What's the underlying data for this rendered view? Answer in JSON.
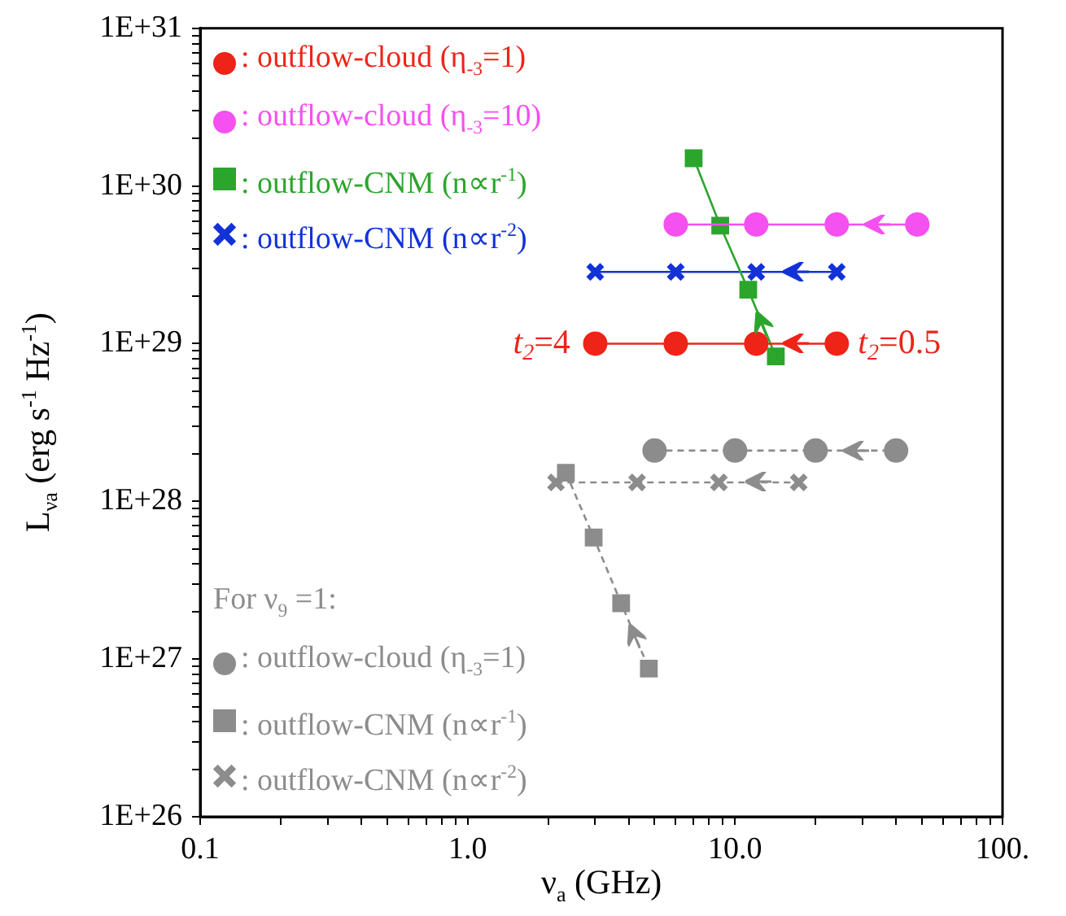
{
  "chart_data": {
    "type": "line",
    "xlabel": "ν$_{a}$ (GHz)",
    "ylabel": "L$_{νa}$ (erg s$^{-1}$ Hz$^{-1}$)",
    "log": "xy",
    "grid": false,
    "legend": "top left",
    "legend_title": "For ν$_{9}$ =1:",
    "xlim": [
      0.1,
      100
    ],
    "ylim": [
      1e+26,
      1e+31
    ],
    "xticks": [
      {
        "value": 0.1,
        "label": "0.1"
      },
      {
        "value": 0.2,
        "label": null
      },
      {
        "value": 0.3,
        "label": null
      },
      {
        "value": 0.4,
        "label": null
      },
      {
        "value": 0.5,
        "label": null
      },
      {
        "value": 0.6,
        "label": null
      },
      {
        "value": 0.7,
        "label": null
      },
      {
        "value": 0.8,
        "label": null
      },
      {
        "value": 0.9,
        "label": null
      },
      {
        "value": 1,
        "label": "1.0"
      },
      {
        "value": 2,
        "label": null
      },
      {
        "value": 3,
        "label": null
      },
      {
        "value": 4,
        "label": null
      },
      {
        "value": 5,
        "label": null
      },
      {
        "value": 6,
        "label": null
      },
      {
        "value": 7,
        "label": null
      },
      {
        "value": 8,
        "label": null
      },
      {
        "value": 9,
        "label": null
      },
      {
        "value": 10,
        "label": "10.0"
      },
      {
        "value": 20,
        "label": null
      },
      {
        "value": 30,
        "label": null
      },
      {
        "value": 40,
        "label": null
      },
      {
        "value": 50,
        "label": null
      },
      {
        "value": 60,
        "label": null
      },
      {
        "value": 70,
        "label": null
      },
      {
        "value": 80,
        "label": null
      },
      {
        "value": 90,
        "label": null
      },
      {
        "value": 100,
        "label": "100."
      }
    ],
    "yticks": [
      {
        "value": 1e+26,
        "label": "1E+26"
      },
      {
        "value": 2e+26,
        "label": null
      },
      {
        "value": 3e+26,
        "label": null
      },
      {
        "value": 4e+26,
        "label": null
      },
      {
        "value": 5e+26,
        "label": null
      },
      {
        "value": 6e+26,
        "label": null
      },
      {
        "value": 7e+26,
        "label": null
      },
      {
        "value": 8e+26,
        "label": null
      },
      {
        "value": 9e+26,
        "label": null
      },
      {
        "value": 1e+27,
        "label": "1E+27"
      },
      {
        "value": 2e+27,
        "label": null
      },
      {
        "value": 3e+27,
        "label": null
      },
      {
        "value": 4e+27,
        "label": null
      },
      {
        "value": 5e+27,
        "label": null
      },
      {
        "value": 6e+27,
        "label": null
      },
      {
        "value": 7e+27,
        "label": null
      },
      {
        "value": 8e+27,
        "label": null
      },
      {
        "value": 9e+27,
        "label": null
      },
      {
        "value": 1e+28,
        "label": "1E+28"
      },
      {
        "value": 2e+28,
        "label": null
      },
      {
        "value": 3e+28,
        "label": null
      },
      {
        "value": 4e+28,
        "label": null
      },
      {
        "value": 5e+28,
        "label": null
      },
      {
        "value": 6e+28,
        "label": null
      },
      {
        "value": 7e+28,
        "label": null
      },
      {
        "value": 8e+28,
        "label": null
      },
      {
        "value": 9e+28,
        "label": null
      },
      {
        "value": 1e+29,
        "label": "1E+29"
      },
      {
        "value": 2e+29,
        "label": null
      },
      {
        "value": 3e+29,
        "label": null
      },
      {
        "value": 4e+29,
        "label": null
      },
      {
        "value": 5e+29,
        "label": null
      },
      {
        "value": 6e+29,
        "label": null
      },
      {
        "value": 7e+29,
        "label": null
      },
      {
        "value": 8e+29,
        "label": null
      },
      {
        "value": 9e+29,
        "label": null
      },
      {
        "value": 1e+30,
        "label": "1E+30"
      },
      {
        "value": 2e+30,
        "label": null
      },
      {
        "value": 3e+30,
        "label": null
      },
      {
        "value": 4e+30,
        "label": null
      },
      {
        "value": 5e+30,
        "label": null
      },
      {
        "value": 6e+30,
        "label": null
      },
      {
        "value": 7e+30,
        "label": null
      },
      {
        "value": 8e+30,
        "label": null
      },
      {
        "value": 9e+30,
        "label": null
      },
      {
        "value": 1e+31,
        "label": "1E+31"
      }
    ],
    "series": [
      {
        "name": ": outflow-cloud (η$_{-3}$=1)",
        "color": "#ee2418",
        "marker": "circle",
        "line_style": "solid",
        "x": [
          3,
          6,
          12,
          24
        ],
        "values": [
          1e+29,
          1e+29,
          1e+29,
          1e+29
        ]
      },
      {
        "name": ": outflow-cloud (η$_{-3}$=10)",
        "color": "#f550f0",
        "marker": "circle",
        "line_style": "solid",
        "x": [
          6,
          12,
          24,
          48
        ],
        "values": [
          5.7e+29,
          5.7e+29,
          5.7e+29,
          5.7e+29
        ]
      },
      {
        "name": ": outflow-CNM (n∝r$^{-1}$)",
        "color": "#2ca52c",
        "marker": "square",
        "line_style": "solid",
        "x": [
          7,
          8.8,
          11.2,
          14.2
        ],
        "values": [
          1.5e+30,
          5.6e+29,
          2.2e+29,
          8.3e+28
        ]
      },
      {
        "name": ": outflow-CNM (n∝r$^{-2}$)",
        "color": "#1232d8",
        "marker": "cross",
        "line_style": "solid",
        "x": [
          3,
          6,
          12,
          24
        ],
        "values": [
          2.85e+29,
          2.85e+29,
          2.85e+29,
          2.85e+29
        ]
      },
      {
        "name": ": outflow-cloud (η$_{-3}$=1)",
        "color": "#8c8c8c",
        "marker": "circle",
        "line_style": "dashed",
        "x": [
          5,
          10,
          20,
          40
        ],
        "values": [
          2.1e+28,
          2.1e+28,
          2.1e+28,
          2.1e+28
        ]
      },
      {
        "name": ": outflow-CNM (n∝r$^{-1}$)",
        "color": "#8c8c8c",
        "marker": "square",
        "line_style": "dashed",
        "x": [
          2.33,
          2.96,
          3.75,
          4.76
        ],
        "values": [
          1.52e+28,
          5.9e+27,
          2.26e+27,
          8.7e+26
        ]
      },
      {
        "name": ": outflow-CNM (n∝r$^{-2}$)",
        "color": "#8c8c8c",
        "marker": "cross",
        "line_style": "dashed",
        "x": [
          2.14,
          4.3,
          8.7,
          17.3
        ],
        "values": [
          1.32e+28,
          1.32e+28,
          1.32e+28,
          1.32e+28
        ]
      }
    ],
    "annotations": [
      {
        "text": "t$_{2}$=4",
        "x": 3,
        "y": 1e+29
      },
      {
        "text": "t$_{2}$=0.5",
        "x": 24,
        "y": 1e+29
      }
    ]
  }
}
